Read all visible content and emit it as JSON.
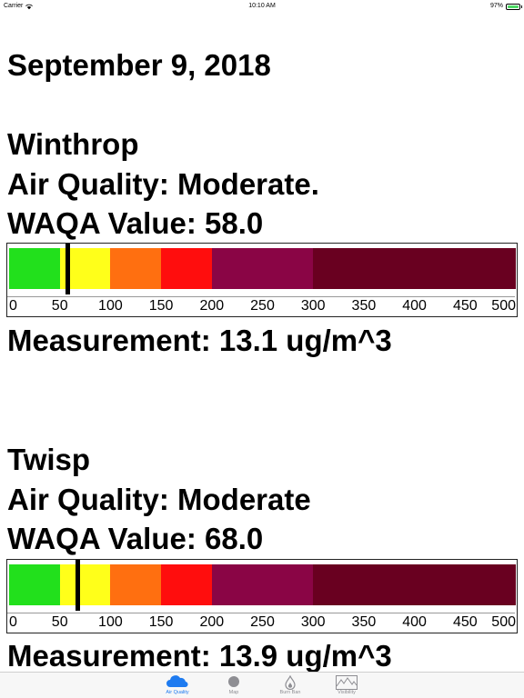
{
  "status_bar": {
    "carrier": "Carrier",
    "time": "10:10 AM",
    "battery": "97%"
  },
  "date": "September 9, 2018",
  "locations": [
    {
      "name": "Winthrop",
      "air_quality": "Air Quality: Moderate.",
      "waqa": "WAQA Value: 58.0",
      "waqa_value": 58.0,
      "measurement": "Measurement: 13.1 ug/m^3"
    },
    {
      "name": "Twisp",
      "air_quality": "Air Quality: Moderate",
      "waqa": "WAQA Value: 68.0",
      "waqa_value": 68.0,
      "measurement": "Measurement: 13.9 ug/m^3"
    }
  ],
  "scale": {
    "min": 0,
    "max": 500,
    "ticks": [
      "0",
      "50",
      "100",
      "150",
      "200",
      "250",
      "300",
      "350",
      "400",
      "450",
      "500"
    ],
    "bands": [
      {
        "from": 0,
        "to": 50,
        "color": "#22e01c"
      },
      {
        "from": 50,
        "to": 100,
        "color": "#ffff1a"
      },
      {
        "from": 100,
        "to": 150,
        "color": "#ff6f10"
      },
      {
        "from": 150,
        "to": 200,
        "color": "#ff0d0d"
      },
      {
        "from": 200,
        "to": 300,
        "color": "#8a0545"
      },
      {
        "from": 300,
        "to": 500,
        "color": "#690020"
      }
    ]
  },
  "tab_bar": {
    "active_color": "#1e7bf0",
    "tabs": [
      {
        "label": "Air Quality",
        "icon": "cloud-icon",
        "active": true
      },
      {
        "label": "Map",
        "icon": "map-dot-icon",
        "active": false
      },
      {
        "label": "Burn Ban",
        "icon": "flame-icon",
        "active": false
      },
      {
        "label": "Visibility",
        "icon": "mountain-icon",
        "active": false
      }
    ]
  }
}
